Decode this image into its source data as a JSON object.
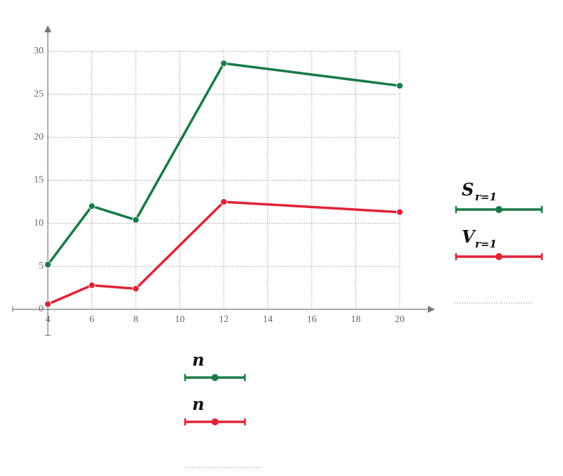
{
  "chart_data": {
    "type": "line",
    "x": [
      4,
      6,
      8,
      12,
      20
    ],
    "series": [
      {
        "name": "S",
        "subscript": "r=1",
        "x_name": "n",
        "color": "#187a48",
        "values": [
          5.2,
          12,
          10.4,
          28.6,
          26
        ]
      },
      {
        "name": "V",
        "subscript": "r=1",
        "x_name": "n",
        "color": "#df2436",
        "values": [
          0.6,
          2.8,
          2.4,
          12.5,
          11.3
        ]
      }
    ],
    "xlim": [
      4,
      20
    ],
    "xticks": [
      4,
      6,
      8,
      10,
      12,
      14,
      16,
      18,
      20
    ],
    "ylim": [
      0,
      30
    ],
    "yticks": [
      0,
      5,
      10,
      15,
      20,
      25,
      30
    ],
    "grid": true
  }
}
